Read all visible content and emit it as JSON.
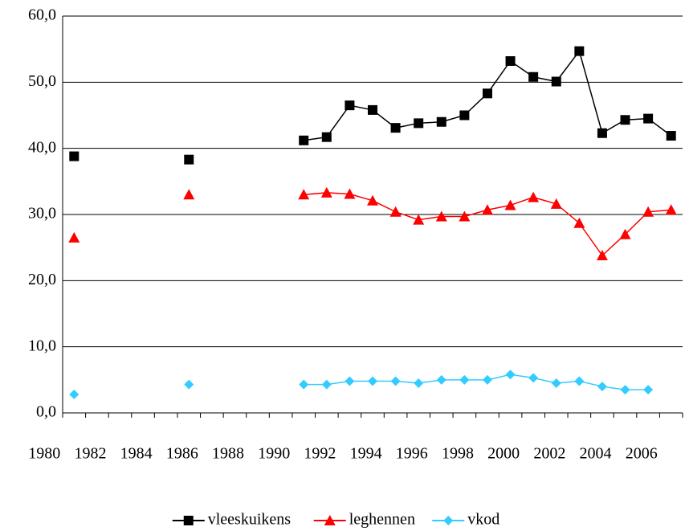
{
  "chart_data": {
    "type": "line",
    "categories": [
      "1980",
      null,
      "1982",
      null,
      "1984",
      null,
      "1986",
      null,
      "1988",
      null,
      "1990",
      null,
      "1992",
      null,
      "1994",
      null,
      "1996",
      null,
      "1998",
      null,
      "2000",
      null,
      "2002",
      null,
      "2004",
      null,
      "2006"
    ],
    "series": [
      {
        "name": "vleeskuikens",
        "color": "#000000",
        "marker": "square",
        "values": [
          38.8,
          null,
          null,
          null,
          null,
          38.3,
          null,
          null,
          null,
          null,
          41.2,
          41.7,
          46.5,
          45.8,
          43.1,
          43.8,
          44.0,
          45.0,
          48.3,
          53.2,
          50.8,
          50.1,
          54.7,
          42.3,
          44.3,
          44.5,
          41.9
        ]
      },
      {
        "name": "leghennen",
        "color": "#ff0000",
        "marker": "triangle",
        "values": [
          26.5,
          null,
          null,
          null,
          null,
          33.0,
          null,
          null,
          null,
          null,
          33.0,
          33.3,
          33.1,
          32.1,
          30.4,
          29.2,
          29.7,
          29.7,
          30.7,
          31.4,
          32.6,
          31.6,
          28.7,
          23.8,
          27.0,
          30.4,
          30.7
        ]
      },
      {
        "name": "vkod",
        "color": "#33ccff",
        "marker": "diamond",
        "values": [
          2.8,
          null,
          null,
          null,
          null,
          4.3,
          null,
          null,
          null,
          null,
          4.3,
          4.3,
          4.8,
          4.8,
          4.8,
          4.5,
          5.0,
          5.0,
          5.0,
          5.8,
          5.3,
          4.5,
          4.8,
          4.0,
          3.5,
          3.5,
          null
        ]
      }
    ],
    "ylim": [
      0,
      60
    ],
    "yticks": [
      {
        "value": 0,
        "label": "0,0"
      },
      {
        "value": 10,
        "label": "10,0"
      },
      {
        "value": 20,
        "label": "20,0"
      },
      {
        "value": 30,
        "label": "30,0"
      },
      {
        "value": 40,
        "label": "40,0"
      },
      {
        "value": 50,
        "label": "50,0"
      },
      {
        "value": 60,
        "label": "60,0"
      }
    ],
    "grid": true,
    "legend": "bottom"
  }
}
